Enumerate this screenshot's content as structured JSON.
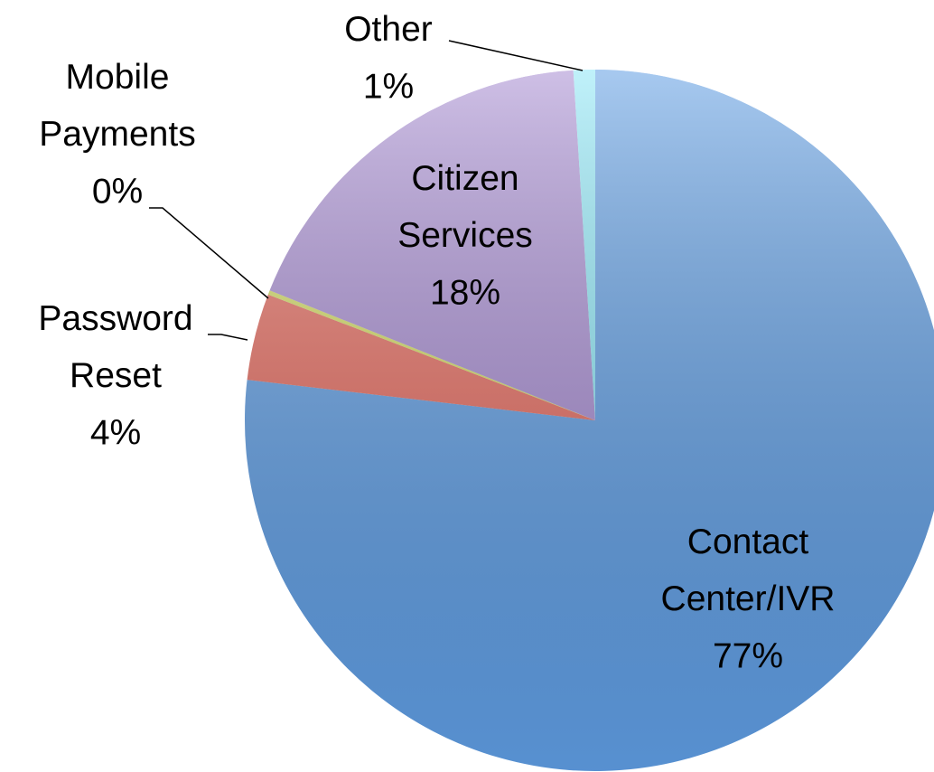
{
  "chart_data": {
    "type": "pie",
    "categories": [
      "Contact Center/IVR",
      "Password Reset",
      "Mobile Payments",
      "Citizen Services",
      "Other"
    ],
    "values": [
      77,
      4,
      0.2,
      18,
      1
    ],
    "value_labels": [
      "77%",
      "4%",
      "0%",
      "18%",
      "1%"
    ],
    "colors": [
      "#5f9de3",
      "#e56a5e",
      "#d4de62",
      "#a68bd1",
      "#8ce6f6"
    ]
  }
}
